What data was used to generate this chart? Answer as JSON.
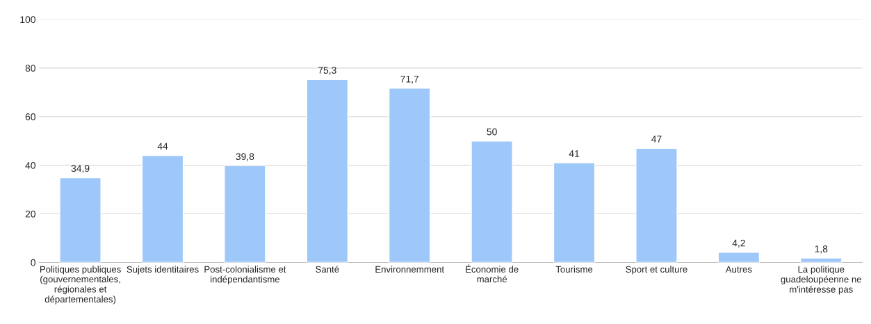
{
  "chart_data": {
    "type": "bar",
    "categories": [
      "Politiques publiques\n(gouvernementales,\nrégionales et\ndépartementales)",
      "Sujets identitaires",
      "Post-colonialisme et\nindépendantisme",
      "Santé",
      "Environnemment",
      "Économie de\nmarché",
      "Tourisme",
      "Sport et culture",
      "Autres",
      "La politique\nguadeloupéenne ne\nm'intéresse pas"
    ],
    "values": [
      34.9,
      44,
      39.8,
      75.3,
      71.7,
      50,
      41,
      47,
      4.2,
      1.8
    ],
    "value_labels": [
      "34,9",
      "44",
      "39,8",
      "75,3",
      "71,7",
      "50",
      "41",
      "47",
      "4,2",
      "1,8"
    ],
    "color": "#9fc8fa",
    "ylim": [
      0,
      100
    ],
    "yticks": [
      0,
      20,
      40,
      60,
      80,
      100
    ],
    "grid": "y"
  }
}
